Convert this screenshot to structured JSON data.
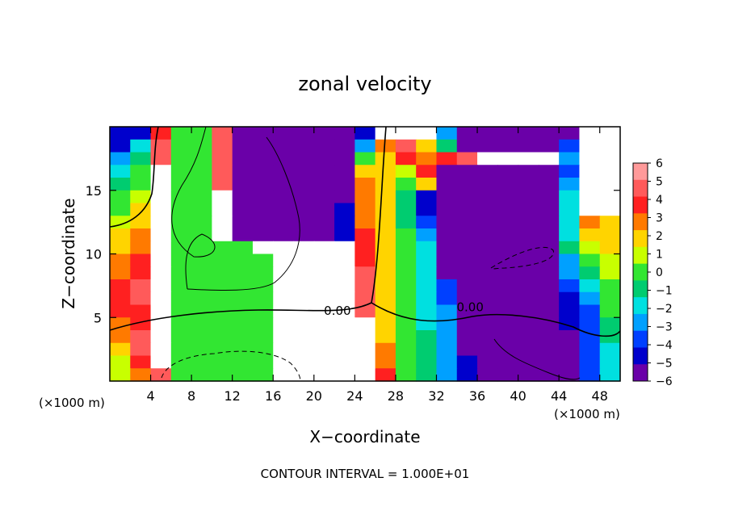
{
  "chart_data": {
    "type": "heatmap",
    "title": "zonal velocity",
    "xlabel": "X−coordinate",
    "ylabel": "Z−coordinate",
    "x_unit_note_left": "(×1000 m)",
    "x_unit_note_right": "(×1000 m)",
    "footer": "CONTOUR INTERVAL = 1.000E+01",
    "xlim": [
      0,
      50
    ],
    "ylim": [
      0,
      20
    ],
    "xticks": [
      4,
      8,
      12,
      16,
      20,
      24,
      28,
      32,
      36,
      40,
      44,
      48
    ],
    "yticks": [
      5,
      10,
      15
    ],
    "colorbar": {
      "ticks": [
        6,
        5,
        4,
        3,
        2,
        1,
        0,
        -1,
        -2,
        -3,
        -4,
        -5,
        -6
      ],
      "tick_labels": [
        "6",
        "5",
        "4",
        "3",
        "2",
        "1",
        "0",
        "−1",
        "−2",
        "−3",
        "−4",
        "−5",
        "−6"
      ],
      "range": [
        -6,
        6
      ],
      "colors": [
        "#ff9a9a",
        "#ff5a5a",
        "#ff2020",
        "#ff7a00",
        "#ffd400",
        "#c8ff00",
        "#32e632",
        "#00cc70",
        "#00e0e0",
        "#00a0ff",
        "#0040ff",
        "#0000cc",
        "#6a00a8"
      ]
    },
    "contour_labels": [
      {
        "text": "0.00",
        "x": 22.3,
        "y": 5.2
      },
      {
        "text": "0.00",
        "x": 35.3,
        "y": 5.5
      }
    ],
    "gridded_values": [
      [
        -5,
        -5,
        4,
        0,
        0,
        5,
        -6,
        -6,
        -6,
        -6,
        -6,
        -6,
        -5,
        6,
        6,
        6,
        -3,
        -6,
        -6,
        -6,
        -6,
        -6,
        -6,
        6,
        6
      ],
      [
        -5,
        -2,
        5,
        0,
        0,
        5,
        -6,
        -6,
        -6,
        -6,
        -6,
        -6,
        -3,
        3,
        5,
        2,
        -1,
        -6,
        -6,
        -6,
        -6,
        -6,
        -4,
        6,
        6
      ],
      [
        -3,
        -1,
        5,
        0,
        0,
        5,
        -6,
        -6,
        -6,
        -6,
        -6,
        -6,
        0,
        2,
        4,
        3,
        4,
        5,
        6,
        6,
        6,
        6,
        -3,
        6,
        6
      ],
      [
        -2,
        0,
        6,
        0,
        0,
        5,
        -6,
        -6,
        -6,
        -6,
        -6,
        -6,
        2,
        2,
        1,
        4,
        -6,
        -6,
        -6,
        -6,
        -6,
        -6,
        -4,
        6,
        6
      ],
      [
        -1,
        0,
        6,
        0,
        0,
        5,
        -6,
        -6,
        -6,
        -6,
        -6,
        -6,
        3,
        2,
        0,
        2,
        -6,
        -6,
        -6,
        -6,
        -6,
        -6,
        -3,
        6,
        6
      ],
      [
        0,
        1,
        6,
        0,
        0,
        6,
        -6,
        -6,
        -6,
        -6,
        -6,
        -6,
        3,
        2,
        -1,
        -5,
        -6,
        -6,
        -6,
        -6,
        -6,
        -6,
        -2,
        6,
        6
      ],
      [
        0,
        2,
        6,
        0,
        0,
        6,
        -6,
        -6,
        -6,
        -6,
        -6,
        -5,
        3,
        2,
        -1,
        -5,
        -6,
        -6,
        -6,
        -6,
        -6,
        -6,
        -2,
        6,
        6
      ],
      [
        1,
        2,
        6,
        0,
        0,
        6,
        -6,
        -6,
        -6,
        -6,
        -6,
        -5,
        3,
        2,
        -1,
        -4,
        -6,
        -6,
        -6,
        -6,
        -6,
        -6,
        -2,
        3,
        2
      ],
      [
        2,
        3,
        6,
        0,
        0,
        6,
        -6,
        -6,
        -6,
        -6,
        -6,
        -5,
        4,
        2,
        0,
        -3,
        -6,
        -6,
        -6,
        -6,
        -6,
        -6,
        -2,
        2,
        2
      ],
      [
        2,
        3,
        6,
        0,
        0,
        0,
        0,
        6,
        6,
        6,
        6,
        6,
        4,
        2,
        0,
        -2,
        -6,
        -6,
        -6,
        -6,
        -6,
        -6,
        -1,
        1,
        2
      ],
      [
        3,
        4,
        6,
        0,
        0,
        0,
        0,
        0,
        6,
        6,
        6,
        6,
        4,
        2,
        0,
        -2,
        -6,
        -6,
        -6,
        -6,
        -6,
        -6,
        -3,
        0,
        1
      ],
      [
        3,
        4,
        6,
        0,
        0,
        0,
        0,
        0,
        6,
        6,
        6,
        6,
        5,
        2,
        0,
        -2,
        -6,
        -6,
        -6,
        -6,
        -6,
        -6,
        -3,
        -1,
        1
      ],
      [
        4,
        5,
        6,
        0,
        0,
        0,
        0,
        0,
        6,
        6,
        6,
        6,
        5,
        2,
        0,
        -2,
        -4,
        -6,
        -6,
        -6,
        -6,
        -6,
        -4,
        -2,
        0
      ],
      [
        4,
        5,
        6,
        0,
        0,
        0,
        0,
        0,
        6,
        6,
        6,
        6,
        5,
        2,
        0,
        -2,
        -4,
        -6,
        -6,
        -6,
        -6,
        -6,
        -5,
        -3,
        0
      ],
      [
        4,
        4,
        6,
        0,
        0,
        0,
        0,
        0,
        6,
        6,
        6,
        6,
        5,
        2,
        0,
        -2,
        -3,
        -6,
        -6,
        -6,
        -6,
        -6,
        -5,
        -4,
        0
      ],
      [
        3,
        4,
        6,
        0,
        0,
        0,
        0,
        0,
        6,
        6,
        6,
        6,
        6,
        2,
        0,
        -2,
        -3,
        -6,
        -6,
        -6,
        -6,
        -6,
        -5,
        -4,
        -1
      ],
      [
        3,
        5,
        6,
        0,
        0,
        0,
        0,
        0,
        6,
        6,
        6,
        6,
        6,
        2,
        0,
        -1,
        -3,
        -6,
        -6,
        -6,
        -6,
        -6,
        -6,
        -4,
        -1
      ],
      [
        2,
        5,
        6,
        0,
        0,
        0,
        0,
        0,
        6,
        6,
        6,
        6,
        6,
        3,
        0,
        -1,
        -3,
        -6,
        -6,
        -6,
        -6,
        -6,
        -6,
        -4,
        -2
      ],
      [
        1,
        4,
        6,
        0,
        0,
        0,
        0,
        0,
        6,
        6,
        6,
        6,
        6,
        3,
        0,
        -1,
        -3,
        -5,
        -6,
        -6,
        -6,
        -6,
        -6,
        -4,
        -2
      ],
      [
        1,
        3,
        5,
        0,
        0,
        0,
        0,
        0,
        6,
        6,
        6,
        6,
        6,
        4,
        0,
        -1,
        -3,
        -5,
        -6,
        -6,
        -6,
        -6,
        -6,
        -4,
        -2
      ]
    ]
  }
}
